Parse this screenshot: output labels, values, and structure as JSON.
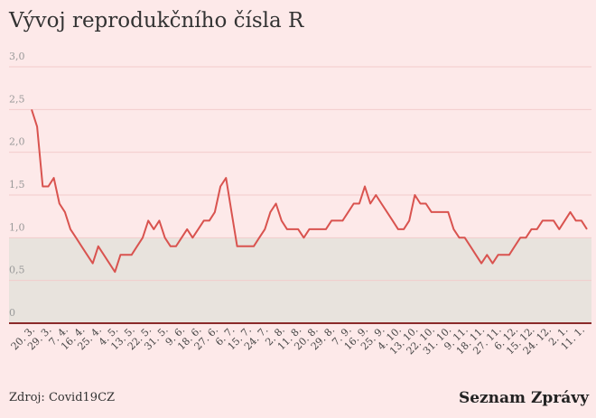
{
  "chart_data": {
    "type": "line",
    "title": "Vývoj reprodukčního čísla R",
    "categories": [
      "20. 3.",
      null,
      null,
      "29. 3.",
      null,
      null,
      "7. 4.",
      null,
      null,
      "16. 4.",
      null,
      null,
      "25. 4.",
      null,
      null,
      "4. 5.",
      null,
      null,
      "13. 5.",
      null,
      null,
      "22. 5.",
      null,
      null,
      "31. 5.",
      null,
      null,
      "9. 6.",
      null,
      null,
      "18. 6.",
      null,
      null,
      "27. 6.",
      null,
      null,
      "6. 7.",
      null,
      null,
      "15. 7.",
      null,
      null,
      "24. 7.",
      null,
      null,
      "2. 8.",
      null,
      null,
      "11. 8.",
      null,
      null,
      "20. 8.",
      null,
      null,
      "29. 8.",
      null,
      null,
      "7. 9.",
      null,
      null,
      "16. 9.",
      null,
      null,
      "25. 9.",
      null,
      null,
      "4. 10.",
      null,
      null,
      "13. 10.",
      null,
      null,
      "22. 10.",
      null,
      null,
      "31. 10.",
      null,
      null,
      "9. 11.",
      null,
      null,
      "18. 11.",
      null,
      null,
      "27. 11.",
      null,
      null,
      "6. 12.",
      null,
      null,
      "15. 12.",
      null,
      null,
      "24. 12.",
      null,
      null,
      "2. 1.",
      null,
      null,
      "11. 1.",
      null
    ],
    "values": [
      2.5,
      2.3,
      1.6,
      1.6,
      1.7,
      1.4,
      1.3,
      1.1,
      1.0,
      0.9,
      0.8,
      0.7,
      0.9,
      0.8,
      0.7,
      0.6,
      0.8,
      0.8,
      0.8,
      0.9,
      1.0,
      1.2,
      1.1,
      1.2,
      1.0,
      0.9,
      0.9,
      1.0,
      1.1,
      1.0,
      1.1,
      1.2,
      1.2,
      1.3,
      1.6,
      1.7,
      1.3,
      0.9,
      0.9,
      0.9,
      0.9,
      1.0,
      1.1,
      1.3,
      1.4,
      1.2,
      1.1,
      1.1,
      1.1,
      1.0,
      1.1,
      1.1,
      1.1,
      1.1,
      1.2,
      1.2,
      1.2,
      1.3,
      1.4,
      1.4,
      1.6,
      1.4,
      1.5,
      1.4,
      1.3,
      1.2,
      1.1,
      1.1,
      1.2,
      1.5,
      1.4,
      1.4,
      1.3,
      1.3,
      1.3,
      1.3,
      1.1,
      1.0,
      1.0,
      0.9,
      0.8,
      0.7,
      0.8,
      0.7,
      0.8,
      0.8,
      0.8,
      0.9,
      1.0,
      1.0,
      1.1,
      1.1,
      1.2,
      1.2,
      1.2,
      1.1,
      1.2,
      1.3,
      1.2,
      1.2,
      1.1
    ],
    "color": "#d9534f",
    "ylim": [
      0,
      3
    ],
    "yticks": [
      0,
      {
        "value": 0.5,
        "label": "0,5"
      },
      {
        "value": 1,
        "label": "1,0"
      },
      {
        "value": 1.5,
        "label": "1,5"
      },
      {
        "value": 2,
        "label": "2,0"
      },
      {
        "value": 2.5,
        "label": "2,5"
      },
      {
        "value": 3,
        "label": "3,0"
      }
    ],
    "grid": true,
    "shaded_range": [
      0,
      1
    ],
    "source": "Zdroj: Covid19CZ",
    "brand": "Seznam Zprávy"
  }
}
